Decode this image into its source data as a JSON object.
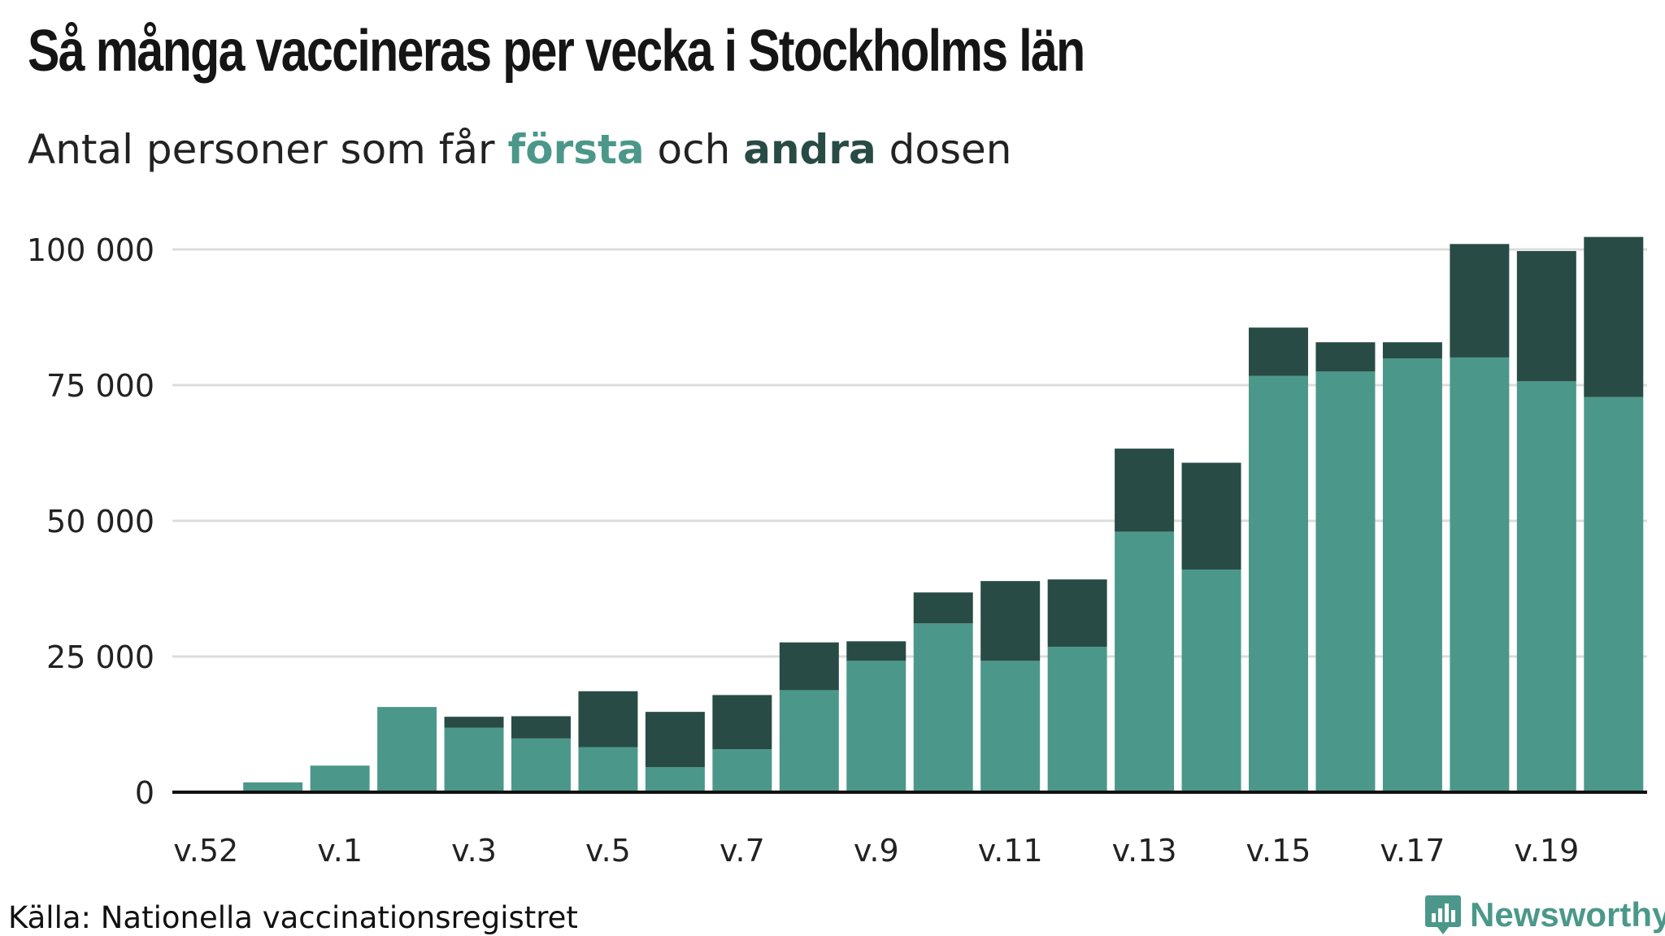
{
  "title": "Så många vaccineras per vecka i Stockholms län",
  "subtitle": {
    "prefix": "Antal personer som får ",
    "first": "första",
    "middle": " och ",
    "second": "andra",
    "suffix": " dosen"
  },
  "source": "Källa: Nationella vaccinationsregistret",
  "logo": {
    "name": "Newsworthy",
    "icon": "newsworthy-chart-bubble-icon"
  },
  "colors": {
    "first": "#4b988a",
    "second": "#284b45",
    "grid": "#dcdcdc",
    "axis": "#111111"
  },
  "chart_data": {
    "type": "bar",
    "stacked": true,
    "categories": [
      "v.52",
      "v.53",
      "v.1",
      "v.2",
      "v.3",
      "v.4",
      "v.5",
      "v.6",
      "v.7",
      "v.8",
      "v.9",
      "v.10",
      "v.11",
      "v.12",
      "v.13",
      "v.14",
      "v.15",
      "v.16",
      "v.17",
      "v.18",
      "v.19",
      "v.20"
    ],
    "tick_labels": [
      "v.52",
      "v.1",
      "v.3",
      "v.5",
      "v.7",
      "v.9",
      "v.11",
      "v.13",
      "v.15",
      "v.17",
      "v.19"
    ],
    "tick_categories": [
      "v.52",
      "v.1",
      "v.3",
      "v.5",
      "v.7",
      "v.9",
      "v.11",
      "v.13",
      "v.15",
      "v.17",
      "v.19"
    ],
    "series": [
      {
        "name": "första",
        "values": [
          0,
          1800,
          4900,
          15700,
          11900,
          9900,
          8300,
          4600,
          7900,
          18800,
          24200,
          31100,
          24200,
          26800,
          48000,
          41000,
          76700,
          77500,
          79900,
          80100,
          75700,
          72800
        ]
      },
      {
        "name": "andra",
        "values": [
          0,
          0,
          0,
          0,
          2000,
          4100,
          10300,
          10200,
          10000,
          8800,
          3600,
          5700,
          14700,
          12400,
          15300,
          19700,
          8900,
          5400,
          3000,
          20900,
          24000,
          29500
        ]
      }
    ],
    "yticks": [
      0,
      25000,
      50000,
      75000,
      100000
    ],
    "ytick_labels": [
      "0",
      "25 000",
      "50 000",
      "75 000",
      "100 000"
    ],
    "ylim": [
      0,
      105000
    ],
    "grid": true,
    "legend": "subtitle"
  }
}
